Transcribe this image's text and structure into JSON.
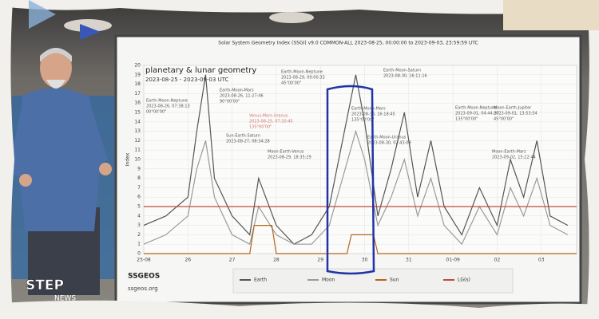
{
  "chart_data": {
    "type": "line",
    "title": "Solar System Geometry Index (SSGI) v9.0 COMMON-ALL 2023-08-25, 00:00:00 to 2023-09-03, 23:59:59 UTC",
    "subtitle": "planetary & lunar geometry",
    "date_range": "2023-08-25 - 2023-09-03 UTC",
    "y_label": "Index",
    "xlim": [
      0,
      9.8
    ],
    "xticks": [
      {
        "value": 0,
        "label": "25-08"
      },
      {
        "value": 1,
        "label": "26"
      },
      {
        "value": 2,
        "label": "27"
      },
      {
        "value": 3,
        "label": "28"
      },
      {
        "value": 4,
        "label": "29"
      },
      {
        "value": 5,
        "label": "30"
      },
      {
        "value": 6,
        "label": "31"
      },
      {
        "value": 7,
        "label": "01-09"
      },
      {
        "value": 8,
        "label": "02"
      },
      {
        "value": 9,
        "label": "03"
      }
    ],
    "ylim": [
      0,
      20
    ],
    "yticks": [
      0,
      1,
      2,
      3,
      4,
      5,
      6,
      7,
      8,
      9,
      10,
      11,
      12,
      13,
      14,
      15,
      16,
      17,
      18,
      19,
      20
    ],
    "grid": true,
    "series": [
      {
        "name": "Earth",
        "color": "#555555",
        "x": [
          0,
          0.5,
          1.0,
          1.2,
          1.4,
          1.6,
          2.0,
          2.4,
          2.6,
          3.0,
          3.4,
          3.8,
          4.2,
          4.5,
          4.8,
          5.0,
          5.3,
          5.6,
          5.9,
          6.2,
          6.5,
          6.8,
          7.2,
          7.6,
          8.0,
          8.3,
          8.6,
          8.9,
          9.2,
          9.6
        ],
        "values": [
          3,
          4,
          6,
          13,
          19,
          8,
          4,
          2,
          8,
          3,
          1,
          2,
          5,
          12,
          19,
          14,
          4,
          9,
          15,
          6,
          12,
          5,
          2,
          7,
          3,
          10,
          6,
          12,
          4,
          3
        ]
      },
      {
        "name": "Moon",
        "color": "#9a9a9a",
        "x": [
          0,
          0.5,
          1.0,
          1.2,
          1.4,
          1.6,
          2.0,
          2.4,
          2.6,
          3.0,
          3.4,
          3.8,
          4.2,
          4.5,
          4.8,
          5.0,
          5.3,
          5.6,
          5.9,
          6.2,
          6.5,
          6.8,
          7.2,
          7.6,
          8.0,
          8.3,
          8.6,
          8.9,
          9.2,
          9.6
        ],
        "values": [
          1,
          2,
          4,
          9,
          12,
          6,
          2,
          1,
          5,
          2,
          1,
          1,
          3,
          8,
          13,
          10,
          3,
          6,
          10,
          4,
          8,
          3,
          1,
          5,
          2,
          7,
          4,
          8,
          3,
          2
        ]
      },
      {
        "name": "Sun",
        "color": "#b5651d",
        "x": [
          0,
          2.4,
          2.5,
          2.9,
          3.0,
          4.6,
          4.7,
          5.2,
          5.3,
          9.8
        ],
        "values": [
          0,
          0,
          3,
          3,
          0,
          0,
          2,
          2,
          0,
          0
        ]
      },
      {
        "name": "LG(s)",
        "color": "#c04a3a",
        "x": [
          0,
          9.8
        ],
        "values": [
          5,
          5
        ]
      }
    ],
    "annotations": [
      [
        "Earth-Moon-Neptune",
        "2023-08-26, 07:38:13",
        "00°00'00\""
      ],
      [
        "Earth-Moon-Mars",
        "2023-08-26, 11:27:46",
        "90°00'00\""
      ],
      [
        "Venus-Mars-Uranus",
        "2023-08-25, 07:20:45",
        "135°00'00\""
      ],
      [
        "Sun-Earth-Saturn",
        "2023-08-27, 08:34:28"
      ],
      [
        "Earth-Moon-Neptune",
        "2023-08-29, 09:00:33",
        "45°00'00\""
      ],
      [
        "Moon-Earth-Venus",
        "2023-08-29, 18:35:29"
      ],
      [
        "Earth-Moon-Saturn",
        "2023-08-30, 16:11:16"
      ],
      [
        "Earth-Moon-Mars",
        "2023-08-30, 16:18:45",
        "135°00'00\""
      ],
      [
        "Earth-Moon-Uranus",
        "2023-08-30, 02:43:09"
      ],
      [
        "Earth-Moon-Neptune",
        "2023-09-01, 04:44:37",
        "135°00'00\""
      ],
      [
        "Moon-Earth-Jupiter",
        "2023-09-01, 13:53:54",
        "45°00'00\""
      ],
      [
        "Moon-Earth-Mars",
        "2023-09-02, 15:22:44"
      ]
    ]
  },
  "footer": {
    "brand": "SSGEOS",
    "site": "ssgeos.org"
  },
  "logo": {
    "top": "STEP",
    "bottom": "NEWS"
  }
}
